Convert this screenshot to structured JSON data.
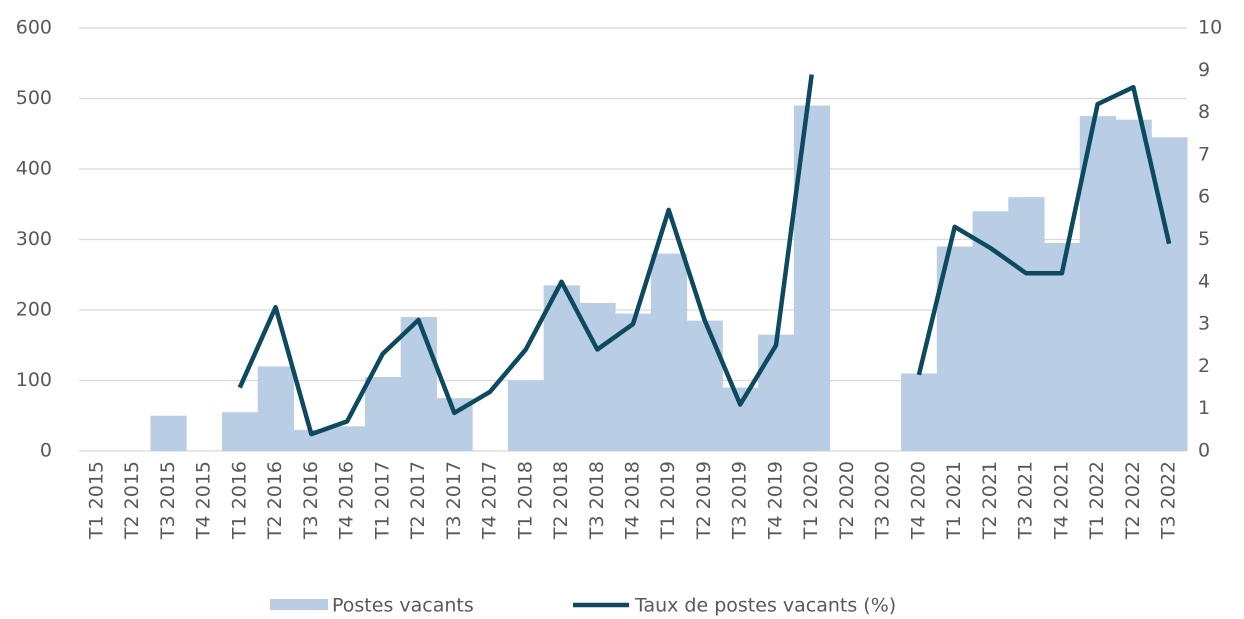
{
  "chart_data": {
    "type": "bar_line",
    "categories": [
      "T1 2015",
      "T2 2015",
      "T3 2015",
      "T4 2015",
      "T1 2016",
      "T2 2016",
      "T3 2016",
      "T4 2016",
      "T1 2017",
      "T2 2017",
      "T3 2017",
      "T4 2017",
      "T1 2018",
      "T2 2018",
      "T3 2018",
      "T4 2018",
      "T1 2019",
      "T2 2019",
      "T3 2019",
      "T4 2019",
      "T1 2020",
      "T2 2020",
      "T3 2020",
      "T4 2020",
      "T1 2021",
      "T2 2021",
      "T3 2021",
      "T4 2021",
      "T1 2022",
      "T2 2022",
      "T3 2022"
    ],
    "series": [
      {
        "name": "Postes vacants",
        "type": "bar",
        "color": "#b9cde5",
        "values": [
          null,
          null,
          50,
          null,
          55,
          120,
          30,
          35,
          105,
          190,
          75,
          null,
          100,
          235,
          210,
          195,
          280,
          185,
          90,
          165,
          490,
          null,
          null,
          110,
          290,
          340,
          360,
          295,
          475,
          470,
          445
        ]
      },
      {
        "name": "Taux de postes vacants (%)",
        "type": "line",
        "axis": "y2",
        "color": "#0d4a5f",
        "values": [
          null,
          null,
          null,
          null,
          1.5,
          3.4,
          0.4,
          0.7,
          2.3,
          3.1,
          0.9,
          1.4,
          2.4,
          4.0,
          2.4,
          3.0,
          5.7,
          3.1,
          1.1,
          2.5,
          8.9,
          null,
          null,
          1.8,
          5.3,
          4.8,
          4.2,
          4.2,
          8.2,
          8.6,
          4.9
        ]
      }
    ],
    "ylim": [
      0,
      600
    ],
    "yticks": [
      0,
      100,
      200,
      300,
      400,
      500,
      600
    ],
    "y2lim": [
      0,
      10
    ],
    "y2ticks": [
      0,
      1,
      2,
      3,
      4,
      5,
      6,
      7,
      8,
      9,
      10
    ],
    "grid": true,
    "legend": "bottom"
  }
}
